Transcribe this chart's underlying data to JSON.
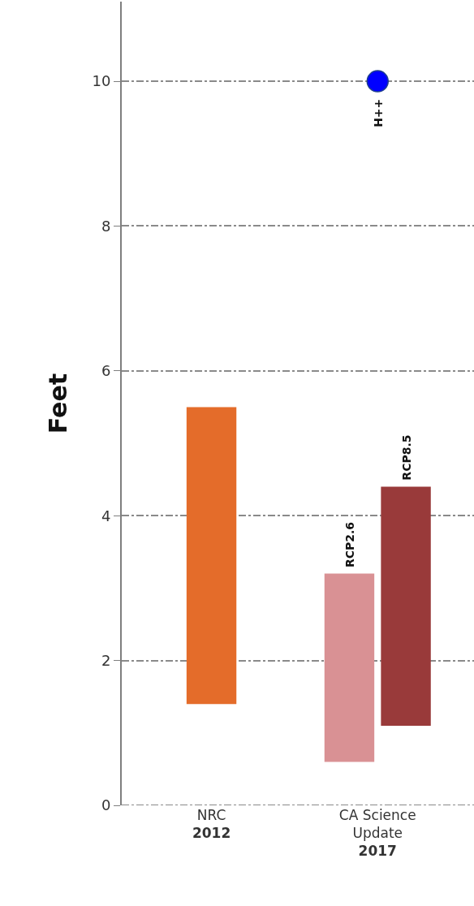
{
  "chart_data": {
    "type": "bar",
    "ylabel": "Feet",
    "categories": [
      "NRC\n2012",
      "CA Science\nUpdate\n2017"
    ],
    "series": [
      {
        "color": "#e46c2a",
        "values": [
          4.1,
          null
        ],
        "base": [
          1.4,
          null
        ]
      },
      {
        "name": "RCP2.6",
        "color": "#d99194",
        "values": [
          null,
          2.6
        ],
        "base": [
          null,
          0.6
        ]
      },
      {
        "name": "RCP8.5",
        "color": "#993a3a",
        "values": [
          null,
          3.3
        ],
        "base": [
          null,
          1.1
        ]
      },
      {
        "name": "H++",
        "type": "scatter",
        "color": "#0000ff",
        "x": [
          "CA Science\nUpdate\n2017"
        ],
        "values": [
          10
        ]
      }
    ],
    "ylim": [
      0,
      11.1
    ],
    "yticks": [
      0,
      2,
      4,
      6,
      8,
      10
    ],
    "grid": "y",
    "line_style": "dashed",
    "marker": "circle"
  }
}
